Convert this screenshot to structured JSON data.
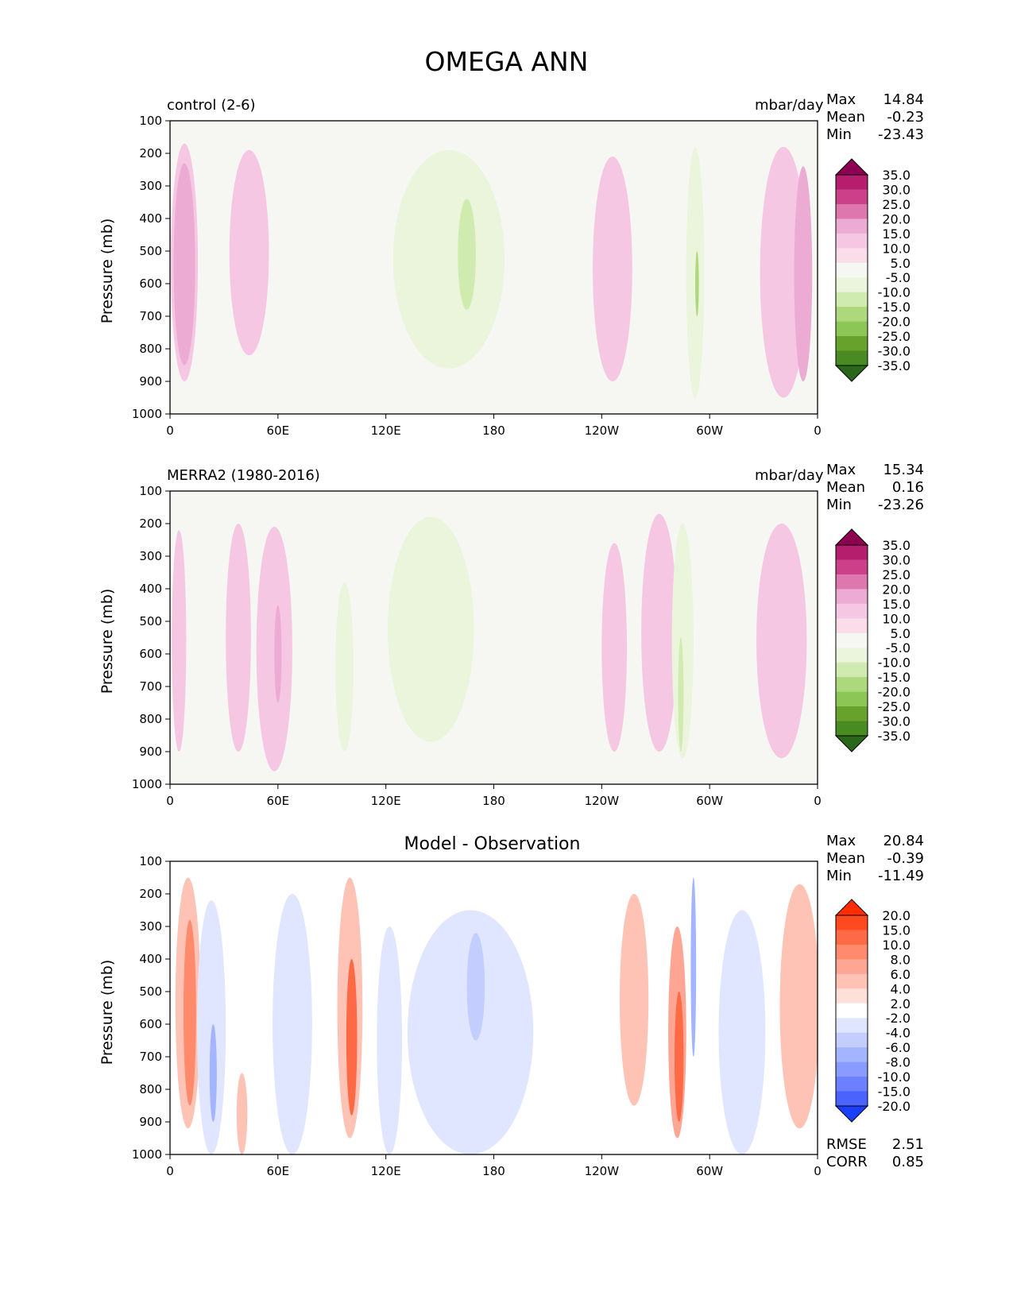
{
  "title": "OMEGA ANN",
  "chart_data": [
    {
      "type": "heatmap",
      "panel": "test",
      "left_title": "control (2-6)",
      "units": "mbar/day",
      "ylabel": "Pressure (mb)",
      "yticks": [
        "100",
        "200",
        "300",
        "400",
        "500",
        "600",
        "700",
        "800",
        "900",
        "1000"
      ],
      "xticks": [
        "0",
        "60E",
        "120E",
        "180",
        "120W",
        "60W",
        "0"
      ],
      "ylim": [
        100,
        1000
      ],
      "xlim": [
        0,
        360
      ],
      "stats": {
        "max_label": "Max",
        "max": "14.84",
        "mean_label": "Mean",
        "mean": "-0.23",
        "min_label": "Min",
        "min": "-23.43"
      },
      "levels": [
        "35.0",
        "30.0",
        "25.0",
        "20.0",
        "15.0",
        "10.0",
        "5.0",
        "-5.0",
        "-10.0",
        "-15.0",
        "-20.0",
        "-25.0",
        "-30.0",
        "-35.0"
      ],
      "colors": [
        "#8e0152",
        "#b51e6c",
        "#cc3f89",
        "#de77ae",
        "#ecabd2",
        "#f5c7e3",
        "#fadde9",
        "#f6f6f2",
        "#eaf5dc",
        "#d0ebb0",
        "#aed87c",
        "#8bc657",
        "#67a22c",
        "#4a8a22",
        "#2a6719"
      ],
      "blobs": [
        {
          "lon": 8,
          "p1": 170,
          "p2": 900,
          "w": 15,
          "level": 10
        },
        {
          "lon": 8,
          "p1": 230,
          "p2": 850,
          "w": 12,
          "level": 15
        },
        {
          "lon": 44,
          "p1": 190,
          "p2": 820,
          "w": 22,
          "level": 10
        },
        {
          "lon": 155,
          "p1": 190,
          "p2": 860,
          "w": 62,
          "level": -5
        },
        {
          "lon": 165,
          "p1": 340,
          "p2": 680,
          "w": 10,
          "level": -10
        },
        {
          "lon": 246,
          "p1": 210,
          "p2": 900,
          "w": 22,
          "level": 10
        },
        {
          "lon": 292,
          "p1": 180,
          "p2": 950,
          "w": 10,
          "level": -5
        },
        {
          "lon": 293,
          "p1": 500,
          "p2": 700,
          "w": 2,
          "level": -15
        },
        {
          "lon": 341,
          "p1": 180,
          "p2": 950,
          "w": 26,
          "level": 10
        },
        {
          "lon": 352,
          "p1": 240,
          "p2": 900,
          "w": 10,
          "level": 15
        }
      ]
    },
    {
      "type": "heatmap",
      "panel": "reference",
      "left_title": "MERRA2 (1980-2016)",
      "units": "mbar/day",
      "ylabel": "Pressure (mb)",
      "yticks": [
        "100",
        "200",
        "300",
        "400",
        "500",
        "600",
        "700",
        "800",
        "900",
        "1000"
      ],
      "xticks": [
        "0",
        "60E",
        "120E",
        "180",
        "120W",
        "60W",
        "0"
      ],
      "ylim": [
        100,
        1000
      ],
      "xlim": [
        0,
        360
      ],
      "stats": {
        "max_label": "Max",
        "max": "15.34",
        "mean_label": "Mean",
        "mean": "0.16",
        "min_label": "Min",
        "min": "-23.26"
      },
      "levels": [
        "35.0",
        "30.0",
        "25.0",
        "20.0",
        "15.0",
        "10.0",
        "5.0",
        "-5.0",
        "-10.0",
        "-15.0",
        "-20.0",
        "-25.0",
        "-30.0",
        "-35.0"
      ],
      "colors": [
        "#8e0152",
        "#b51e6c",
        "#cc3f89",
        "#de77ae",
        "#ecabd2",
        "#f5c7e3",
        "#fadde9",
        "#f6f6f2",
        "#eaf5dc",
        "#d0ebb0",
        "#aed87c",
        "#8bc657",
        "#67a22c",
        "#4a8a22",
        "#2a6719"
      ],
      "blobs": [
        {
          "lon": 5,
          "p1": 220,
          "p2": 900,
          "w": 8,
          "level": 10
        },
        {
          "lon": 38,
          "p1": 200,
          "p2": 900,
          "w": 14,
          "level": 10
        },
        {
          "lon": 58,
          "p1": 210,
          "p2": 960,
          "w": 20,
          "level": 10
        },
        {
          "lon": 60,
          "p1": 450,
          "p2": 750,
          "w": 4,
          "level": 15
        },
        {
          "lon": 97,
          "p1": 380,
          "p2": 900,
          "w": 10,
          "level": -5
        },
        {
          "lon": 145,
          "p1": 180,
          "p2": 870,
          "w": 48,
          "level": -5
        },
        {
          "lon": 247,
          "p1": 260,
          "p2": 900,
          "w": 14,
          "level": 10
        },
        {
          "lon": 272,
          "p1": 170,
          "p2": 900,
          "w": 20,
          "level": 10
        },
        {
          "lon": 285,
          "p1": 200,
          "p2": 920,
          "w": 12,
          "level": -5
        },
        {
          "lon": 284,
          "p1": 550,
          "p2": 900,
          "w": 3,
          "level": -10
        },
        {
          "lon": 340,
          "p1": 200,
          "p2": 920,
          "w": 28,
          "level": 10
        }
      ]
    },
    {
      "type": "heatmap",
      "panel": "difference",
      "center_title": "Model - Observation",
      "ylabel": "Pressure (mb)",
      "yticks": [
        "100",
        "200",
        "300",
        "400",
        "500",
        "600",
        "700",
        "800",
        "900",
        "1000"
      ],
      "xticks": [
        "0",
        "60E",
        "120E",
        "180",
        "120W",
        "60W",
        "0"
      ],
      "ylim": [
        100,
        1000
      ],
      "xlim": [
        0,
        360
      ],
      "stats": {
        "max_label": "Max",
        "max": "20.84",
        "mean_label": "Mean",
        "mean": "-0.39",
        "min_label": "Min",
        "min": "-11.49"
      },
      "extra_stats": {
        "rmse_label": "RMSE",
        "rmse": "2.51",
        "corr_label": "CORR",
        "corr": "0.85"
      },
      "levels": [
        "20.0",
        "15.0",
        "10.0",
        "8.0",
        "6.0",
        "4.0",
        "2.0",
        "-2.0",
        "-4.0",
        "-6.0",
        "-8.0",
        "-10.0",
        "-15.0",
        "-20.0"
      ],
      "colors": [
        "#ff2d00",
        "#ff4a1f",
        "#ff6a46",
        "#ff8a6c",
        "#ffa593",
        "#ffc3b6",
        "#ffe0d9",
        "#ffffff",
        "#e0e6ff",
        "#c3ceff",
        "#a5b4ff",
        "#8a9bff",
        "#6a80ff",
        "#4a63ff",
        "#1a40ff"
      ],
      "blobs": [
        {
          "lon": 10,
          "p1": 150,
          "p2": 920,
          "w": 14,
          "level": 4
        },
        {
          "lon": 11,
          "p1": 280,
          "p2": 850,
          "w": 7,
          "level": 8
        },
        {
          "lon": 23,
          "p1": 220,
          "p2": 1000,
          "w": 16,
          "level": -2
        },
        {
          "lon": 24,
          "p1": 600,
          "p2": 900,
          "w": 4,
          "level": -6
        },
        {
          "lon": 40,
          "p1": 750,
          "p2": 1000,
          "w": 6,
          "level": 4
        },
        {
          "lon": 68,
          "p1": 200,
          "p2": 1000,
          "w": 22,
          "level": -2
        },
        {
          "lon": 100,
          "p1": 150,
          "p2": 950,
          "w": 14,
          "level": 4
        },
        {
          "lon": 101,
          "p1": 400,
          "p2": 880,
          "w": 6,
          "level": 10
        },
        {
          "lon": 122,
          "p1": 300,
          "p2": 1000,
          "w": 14,
          "level": -2
        },
        {
          "lon": 167,
          "p1": 250,
          "p2": 1000,
          "w": 70,
          "level": -2
        },
        {
          "lon": 170,
          "p1": 320,
          "p2": 650,
          "w": 10,
          "level": -4
        },
        {
          "lon": 258,
          "p1": 200,
          "p2": 850,
          "w": 16,
          "level": 4
        },
        {
          "lon": 282,
          "p1": 300,
          "p2": 950,
          "w": 10,
          "level": 6
        },
        {
          "lon": 283,
          "p1": 500,
          "p2": 900,
          "w": 5,
          "level": 10
        },
        {
          "lon": 291,
          "p1": 150,
          "p2": 700,
          "w": 3,
          "level": -6
        },
        {
          "lon": 318,
          "p1": 250,
          "p2": 1000,
          "w": 26,
          "level": -2
        },
        {
          "lon": 350,
          "p1": 170,
          "p2": 920,
          "w": 22,
          "level": 4
        }
      ]
    }
  ]
}
